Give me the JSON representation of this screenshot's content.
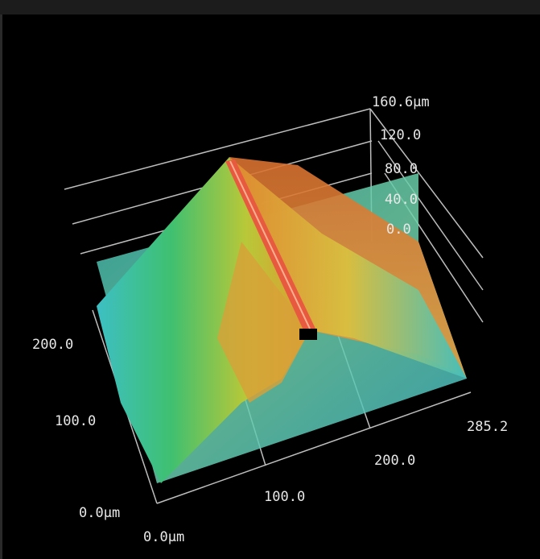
{
  "z_axis": {
    "labels": [
      "160.6μm",
      "120.0",
      "80.0",
      "40.0",
      "0.0"
    ]
  },
  "y_axis": {
    "labels": [
      "200.0",
      "100.0",
      "0.0μm"
    ]
  },
  "x_axis": {
    "labels": [
      "0.0μm",
      "100.0",
      "200.0",
      "285.2"
    ]
  }
}
